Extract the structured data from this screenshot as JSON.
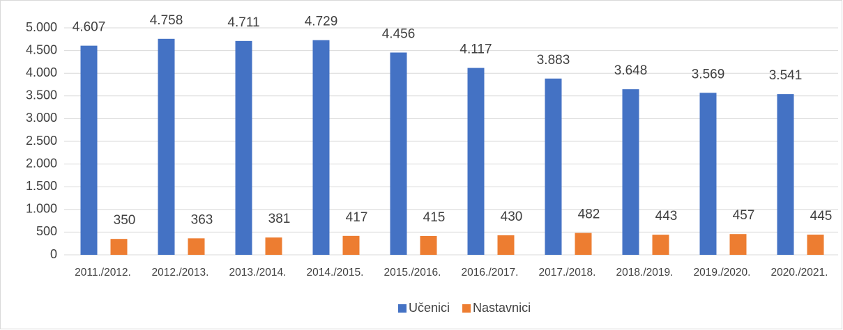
{
  "chart_data": {
    "type": "bar",
    "categories": [
      "2011./2012.",
      "2012./2013.",
      "2013./2014.",
      "2014./2015.",
      "2015./2016.",
      "2016./2017.",
      "2017./2018.",
      "2018./2019.",
      "2019./2020.",
      "2020./2021."
    ],
    "series": [
      {
        "name": "Učenici",
        "color": "#4472c4",
        "values": [
          4607,
          4758,
          4711,
          4729,
          4456,
          4117,
          3883,
          3648,
          3569,
          3541
        ],
        "value_labels": [
          "4.607",
          "4.758",
          "4.711",
          "4.729",
          "4.456",
          "4.117",
          "3.883",
          "3.648",
          "3.569",
          "3.541"
        ]
      },
      {
        "name": "Nastavnici",
        "color": "#ed7d31",
        "values": [
          350,
          363,
          381,
          417,
          415,
          430,
          482,
          443,
          457,
          445
        ]
      }
    ],
    "ylim": [
      0,
      5000
    ],
    "yticks": [
      0,
      500,
      {
        "value": 1000,
        "label": "1.000"
      },
      {
        "value": 1500,
        "label": "1.500"
      },
      {
        "value": 2000,
        "label": "2.000"
      },
      {
        "value": 2500,
        "label": "2.500"
      },
      {
        "value": 3000,
        "label": "3.000"
      },
      {
        "value": 3500,
        "label": "3.500"
      },
      {
        "value": 4000,
        "label": "4.000"
      },
      {
        "value": 4500,
        "label": "4.500"
      },
      {
        "value": 5000,
        "label": "5.000"
      }
    ],
    "grid": true,
    "legend": "bottom"
  }
}
